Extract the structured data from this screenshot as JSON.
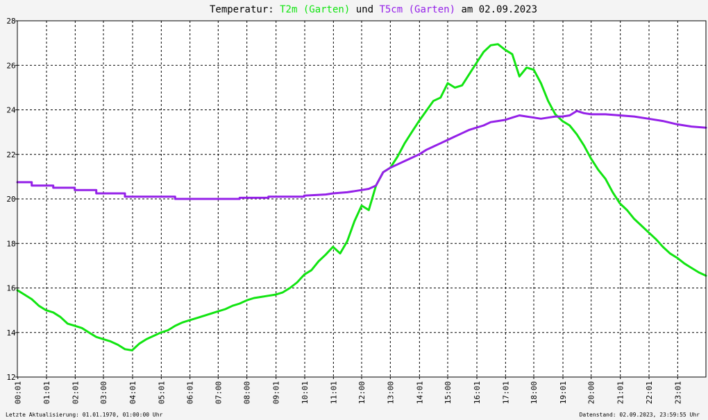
{
  "header": {
    "title_prefix": "Temperatur: ",
    "series1_label": "T2m (Garten)",
    "joiner": " und ",
    "series2_label": "T5cm (Garten)",
    "date_suffix": " am 02.09.2023"
  },
  "footer": {
    "left": "Letzte Aktualisierung: 01.01.1970, 01:00:00 Uhr",
    "right": "Datenstand: 02.09.2023, 23:59:55 Uhr"
  },
  "colors": {
    "series1": "#11e411",
    "series2": "#9420e8",
    "grid": "#000000",
    "plot_bg": "#ffffff",
    "page_bg": "#f4f4f4"
  },
  "chart_data": {
    "type": "line",
    "title": "Temperatur: T2m (Garten) und T5cm (Garten) am 02.09.2023",
    "xlabel": "",
    "ylabel": "",
    "x_unit": "hours",
    "xlim": [
      0.0,
      24.0
    ],
    "ylim": [
      12,
      28
    ],
    "grid": true,
    "legend": "in title",
    "x_ticks": [
      {
        "x": 0.0167,
        "label": "00:01"
      },
      {
        "x": 1.0167,
        "label": "01:01"
      },
      {
        "x": 2.0167,
        "label": "02:01"
      },
      {
        "x": 3.0,
        "label": "03:00"
      },
      {
        "x": 4.0167,
        "label": "04:01"
      },
      {
        "x": 5.0167,
        "label": "05:01"
      },
      {
        "x": 6.0167,
        "label": "06:01"
      },
      {
        "x": 7.0,
        "label": "07:00"
      },
      {
        "x": 8.0,
        "label": "08:00"
      },
      {
        "x": 9.0167,
        "label": "09:01"
      },
      {
        "x": 10.0167,
        "label": "10:01"
      },
      {
        "x": 11.0167,
        "label": "11:01"
      },
      {
        "x": 12.0,
        "label": "12:00"
      },
      {
        "x": 13.0,
        "label": "13:00"
      },
      {
        "x": 14.0167,
        "label": "14:01"
      },
      {
        "x": 15.0,
        "label": "15:00"
      },
      {
        "x": 16.0167,
        "label": "16:01"
      },
      {
        "x": 17.0167,
        "label": "17:01"
      },
      {
        "x": 18.0,
        "label": "18:00"
      },
      {
        "x": 19.0167,
        "label": "19:01"
      },
      {
        "x": 20.0,
        "label": "20:00"
      },
      {
        "x": 21.0167,
        "label": "21:01"
      },
      {
        "x": 22.0167,
        "label": "22:01"
      },
      {
        "x": 23.0167,
        "label": "23:01"
      }
    ],
    "y_ticks": [
      12,
      14,
      16,
      18,
      20,
      22,
      24,
      26,
      28
    ],
    "series": [
      {
        "name": "T2m (Garten)",
        "color": "#11e411",
        "x": [
          0.0,
          0.25,
          0.5,
          0.75,
          1.0,
          1.25,
          1.5,
          1.75,
          2.0,
          2.25,
          2.5,
          2.75,
          3.0,
          3.25,
          3.5,
          3.75,
          4.0,
          4.25,
          4.5,
          4.75,
          5.0,
          5.25,
          5.5,
          5.75,
          6.0,
          6.25,
          6.5,
          6.75,
          7.0,
          7.25,
          7.5,
          7.75,
          8.0,
          8.25,
          8.5,
          8.75,
          9.0,
          9.25,
          9.5,
          9.75,
          10.0,
          10.25,
          10.5,
          10.75,
          11.0,
          11.25,
          11.5,
          11.75,
          12.0,
          12.25,
          12.5,
          12.75,
          13.0,
          13.25,
          13.5,
          13.75,
          14.0,
          14.25,
          14.5,
          14.75,
          15.0,
          15.25,
          15.5,
          15.75,
          16.0,
          16.25,
          16.5,
          16.75,
          17.0,
          17.25,
          17.5,
          17.75,
          18.0,
          18.25,
          18.5,
          18.75,
          19.0,
          19.25,
          19.5,
          19.75,
          20.0,
          20.25,
          20.5,
          20.75,
          21.0,
          21.25,
          21.5,
          21.75,
          22.0,
          22.25,
          22.5,
          22.75,
          23.0,
          23.25,
          23.5,
          23.75,
          24.0
        ],
        "y": [
          15.9,
          15.7,
          15.5,
          15.2,
          15.0,
          14.9,
          14.7,
          14.4,
          14.3,
          14.2,
          14.0,
          13.8,
          13.7,
          13.6,
          13.45,
          13.25,
          13.2,
          13.5,
          13.7,
          13.85,
          14.0,
          14.1,
          14.3,
          14.45,
          14.55,
          14.65,
          14.75,
          14.85,
          14.95,
          15.05,
          15.2,
          15.3,
          15.45,
          15.55,
          15.6,
          15.65,
          15.7,
          15.8,
          16.0,
          16.25,
          16.6,
          16.8,
          17.2,
          17.5,
          17.85,
          17.55,
          18.1,
          19.0,
          19.7,
          19.5,
          20.6,
          21.2,
          21.4,
          21.9,
          22.5,
          23.0,
          23.5,
          23.95,
          24.4,
          24.55,
          25.2,
          25.0,
          25.1,
          25.6,
          26.1,
          26.6,
          26.9,
          26.95,
          26.7,
          26.5,
          25.5,
          25.9,
          25.8,
          25.2,
          24.4,
          23.8,
          23.5,
          23.3,
          22.9,
          22.4,
          21.8,
          21.3,
          20.9,
          20.3,
          19.8,
          19.5,
          19.1,
          18.8,
          18.5,
          18.2,
          17.85,
          17.55,
          17.35,
          17.1,
          16.9,
          16.7,
          16.55
        ]
      },
      {
        "name": "T5cm (Garten)",
        "color": "#9420e8",
        "x": [
          0.0,
          0.5,
          0.5,
          1.25,
          1.25,
          2.0,
          2.0,
          2.75,
          2.75,
          3.75,
          3.75,
          5.5,
          5.5,
          7.75,
          7.75,
          8.75,
          8.75,
          10.0,
          10.0,
          10.75,
          11.0,
          11.5,
          11.75,
          12.0,
          12.25,
          12.5,
          12.75,
          13.0,
          13.25,
          13.5,
          13.75,
          14.0,
          14.25,
          14.5,
          14.75,
          15.0,
          15.25,
          15.5,
          15.75,
          16.0,
          16.25,
          16.5,
          16.75,
          17.0,
          17.25,
          17.5,
          17.75,
          18.0,
          18.25,
          18.5,
          18.75,
          19.0,
          19.25,
          19.5,
          19.75,
          20.0,
          20.5,
          21.0,
          21.5,
          22.0,
          22.5,
          23.0,
          23.5,
          24.0
        ],
        "y": [
          20.75,
          20.75,
          20.6,
          20.6,
          20.5,
          20.5,
          20.4,
          20.4,
          20.25,
          20.25,
          20.1,
          20.1,
          20.0,
          20.0,
          20.05,
          20.05,
          20.1,
          20.1,
          20.15,
          20.2,
          20.25,
          20.3,
          20.35,
          20.4,
          20.45,
          20.6,
          21.2,
          21.4,
          21.55,
          21.7,
          21.85,
          22.0,
          22.2,
          22.35,
          22.5,
          22.65,
          22.8,
          22.95,
          23.1,
          23.2,
          23.3,
          23.45,
          23.5,
          23.55,
          23.65,
          23.75,
          23.7,
          23.65,
          23.6,
          23.65,
          23.7,
          23.7,
          23.75,
          23.95,
          23.85,
          23.8,
          23.8,
          23.75,
          23.7,
          23.6,
          23.5,
          23.35,
          23.25,
          23.2
        ]
      }
    ]
  }
}
